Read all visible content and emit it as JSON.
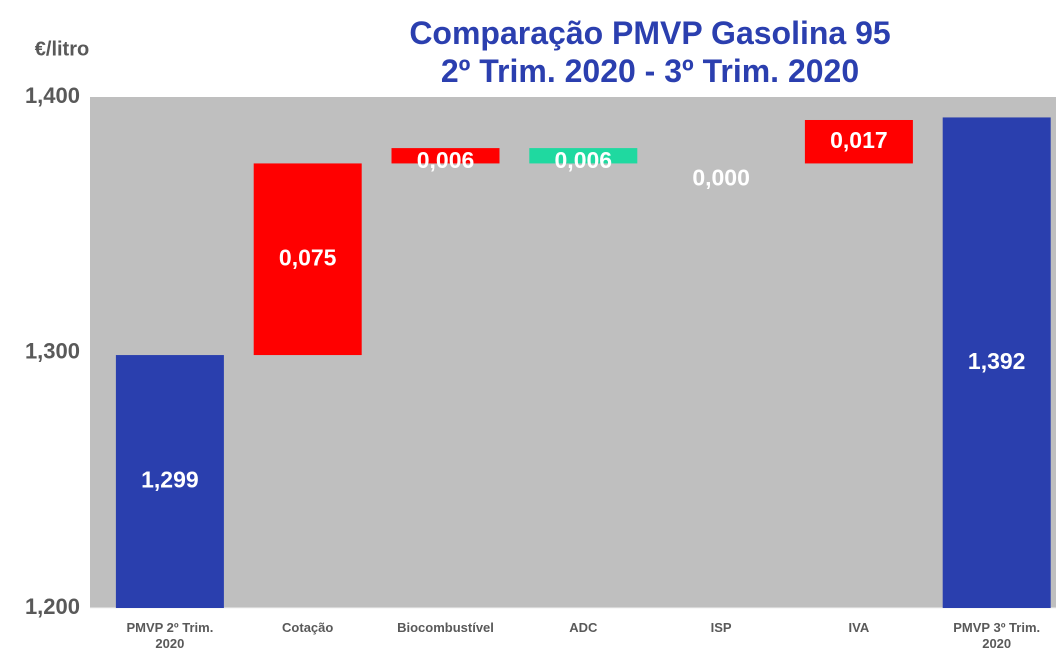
{
  "chart_data": {
    "type": "waterfall",
    "title": "Comparação PMVP Gasolina 95\n2º Trim. 2020 - 3º Trim. 2020",
    "ylabel": "€/litro",
    "categories": [
      "PMVP 2º Trim. 2020",
      "Cotação",
      "Biocombustível",
      "ADC",
      "ISP",
      "IVA",
      "PMVP 3º Trim. 2020"
    ],
    "values": [
      1.299,
      0.075,
      0.006,
      -0.006,
      0.0,
      0.017,
      1.392
    ],
    "value_labels": [
      "1,299",
      "0,075",
      "0,006",
      "0,006",
      "0,000",
      "0,017",
      "1,392"
    ],
    "colors": [
      "#2a3fae",
      "#ff0000",
      "#ff0000",
      "#1fd9a0",
      "#ff0000",
      "#ff0000",
      "#2a3fae"
    ],
    "ylim": [
      1.2,
      1.4
    ],
    "yticks": [
      {
        "value": 1.2,
        "label": "1,200"
      },
      {
        "value": 1.3,
        "label": "1,300"
      },
      {
        "value": 1.4,
        "label": "1,400"
      }
    ],
    "grid": false
  }
}
